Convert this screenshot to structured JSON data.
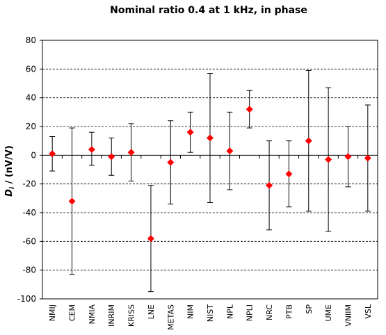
{
  "chart_data": {
    "type": "scatter",
    "title": "Nominal ratio 0.4 at 1 kHz, in phase",
    "ylabel_var": "D",
    "ylabel_sub": "i",
    "ylabel_unit": " / (nV/V)",
    "xlabel": "",
    "ylim": [
      -100,
      80
    ],
    "yticks": [
      80,
      60,
      40,
      20,
      0,
      -20,
      -40,
      -60,
      -80,
      -100
    ],
    "grid": "horizontal dashed",
    "marker_color": "#ff0000",
    "categories": [
      "NMIJ",
      "CEM",
      "NMIA",
      "INRIM",
      "KRISS",
      "LNE",
      "METAS",
      "NIM",
      "NIST",
      "NPL",
      "NPLI",
      "NRC",
      "PTB",
      "SP",
      "UME",
      "VNIIM",
      "VSL"
    ],
    "values": [
      1,
      -32,
      4,
      -1,
      2,
      -58,
      -5,
      16,
      12,
      3,
      32,
      -21,
      -13,
      10,
      -3,
      -1,
      -2
    ],
    "error_low": [
      -11,
      -83,
      -7,
      -14,
      -18,
      -95,
      -34,
      2,
      -33,
      -24,
      19,
      -52,
      -36,
      -39,
      -53,
      -22,
      -39
    ],
    "error_high": [
      13,
      19,
      16,
      12,
      22,
      -21,
      24,
      30,
      57,
      30,
      45,
      10,
      10,
      59,
      47,
      20,
      35
    ]
  }
}
